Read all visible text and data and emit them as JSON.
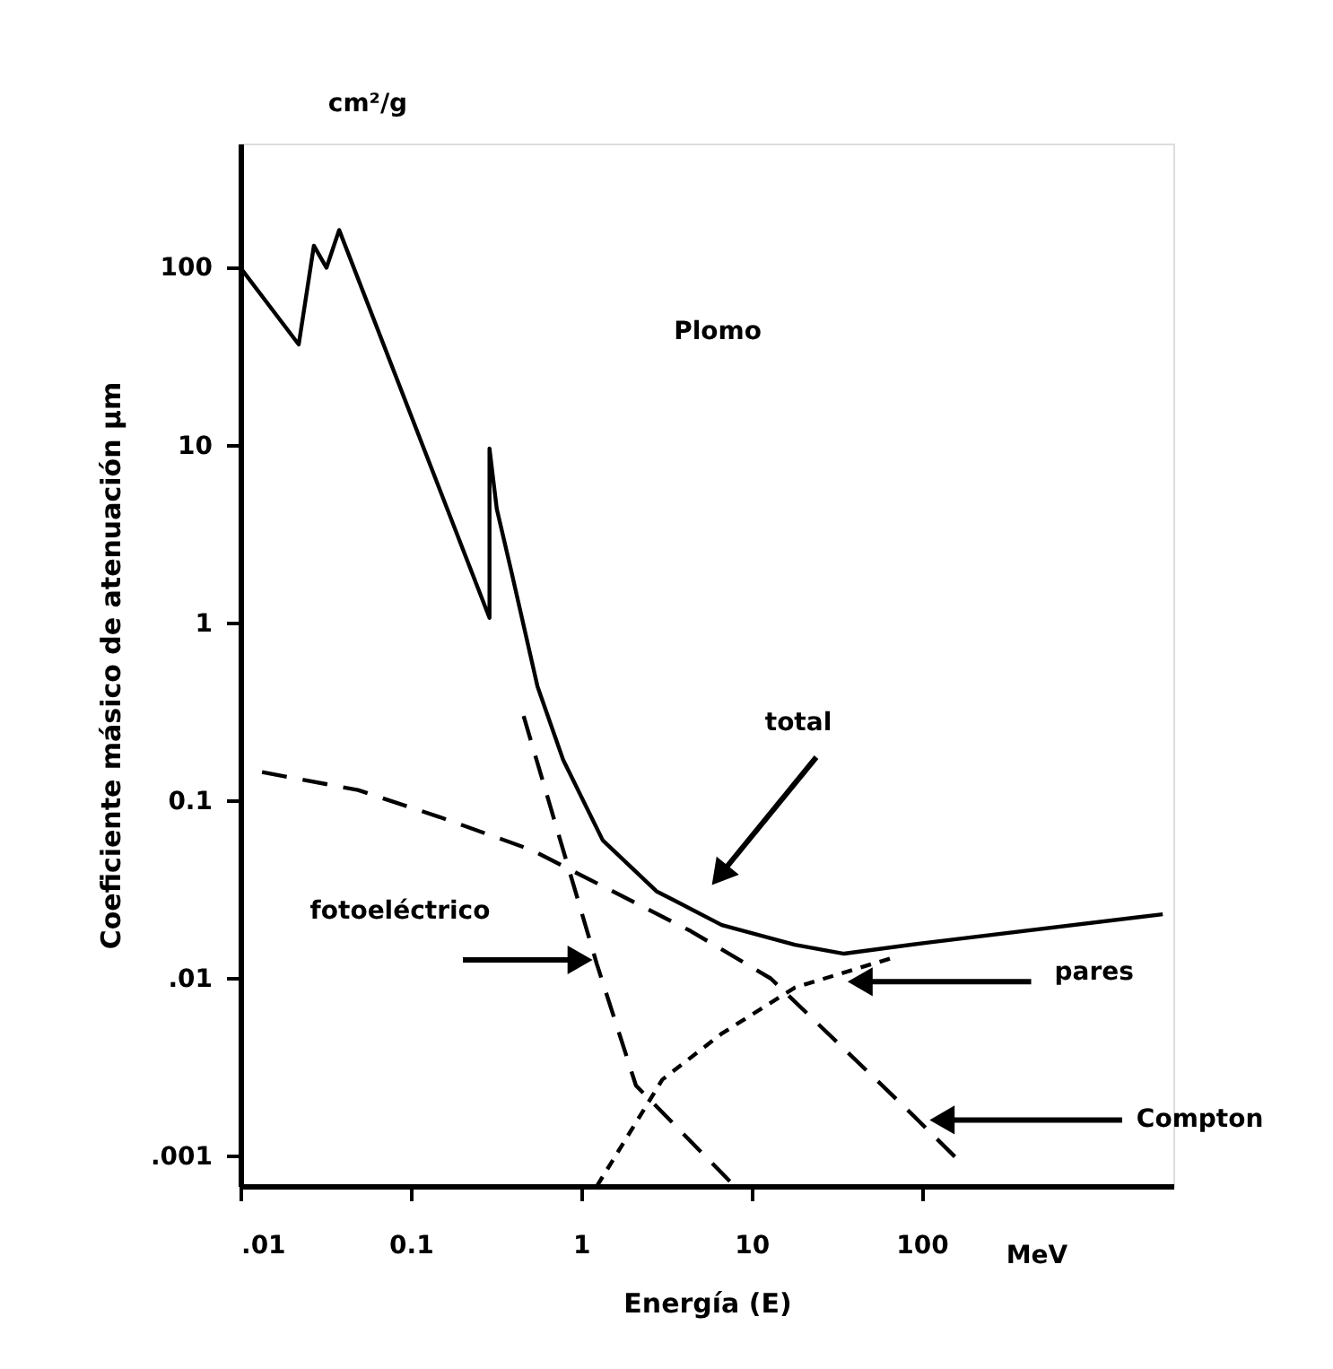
{
  "chart_data": {
    "type": "line",
    "xlabel": "Energía (E)",
    "ylabel": "Coeficiente másico de atenuación μm",
    "log": "xy",
    "grid": false,
    "legend": false,
    "xlim": [
      0.01,
      3000
    ],
    "ylim": [
      0.00068,
      500
    ],
    "xticks": [
      {
        "value": 0.01,
        "label": ".01"
      },
      0.1,
      1,
      10,
      100
    ],
    "yticks": [
      {
        "value": 0.001,
        "label": ".001"
      },
      {
        "value": 0.01,
        "label": ".01"
      },
      0.1,
      1,
      10,
      100
    ],
    "annotations": [
      "cm²/g",
      "Plomo",
      "MeV",
      "total",
      "fotoeléctrico",
      {
        "text": "pares",
        "x": 37,
        "y": 0.0096
      },
      {
        "text": "Compton",
        "x": 112,
        "y": 0.0016
      }
    ],
    "series": [
      {
        "color": "#000000",
        "line_style": "solid",
        "x": [
          0.01,
          0.022,
          0.027,
          0.032,
          0.038,
          0.29,
          0.29,
          0.32,
          0.39,
          0.555,
          0.785,
          1.34,
          2.77,
          6.7,
          18,
          35,
          112,
          2600
        ],
        "values": [
          100,
          37,
          133,
          100,
          163,
          1.07,
          9.6,
          4.4,
          1.95,
          0.44,
          0.17,
          0.06,
          0.031,
          0.02,
          0.0155,
          0.0138,
          0.016,
          0.023
        ]
      },
      {
        "color": "#000000",
        "line_style": "dashed",
        "x": [
          0.0134,
          0.049,
          0.148,
          0.51,
          4.4,
          13,
          79,
          166
        ],
        "values": [
          0.145,
          0.115,
          0.081,
          0.053,
          0.0185,
          0.01,
          0.0019,
          0.00094
        ]
      },
      {
        "color": "#000000",
        "line_style": "dashed",
        "x": [
          0.46,
          1.24,
          2.1,
          7.5
        ],
        "values": [
          0.3,
          0.012,
          0.0025,
          0.00072
        ]
      },
      {
        "color": "#000000",
        "line_style": "dotted",
        "x": [
          1.24,
          3.0,
          6.7,
          18,
          66
        ],
        "values": [
          0.00068,
          0.0027,
          0.0049,
          0.0089,
          0.013
        ]
      }
    ]
  }
}
